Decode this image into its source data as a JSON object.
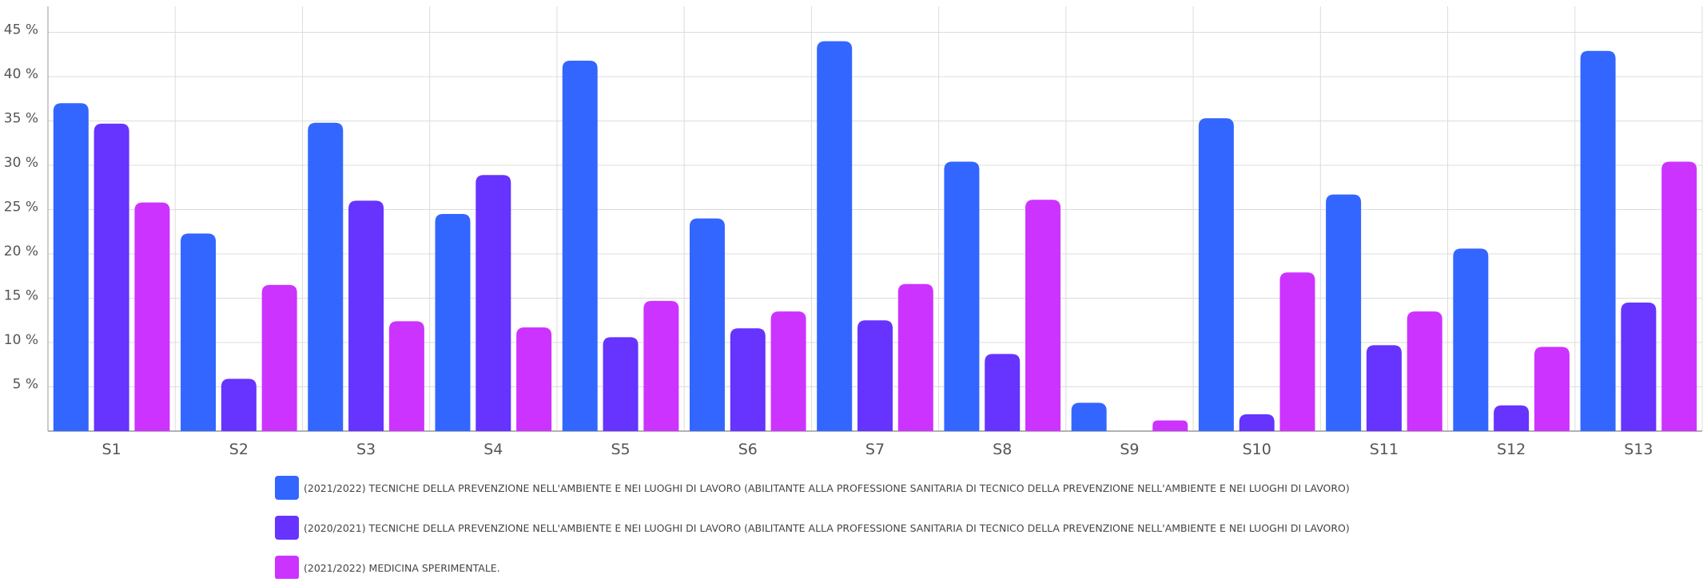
{
  "chart_data": {
    "type": "bar",
    "title": "",
    "xlabel": "",
    "ylabel": "",
    "categories": [
      "S1",
      "S2",
      "S3",
      "S4",
      "S5",
      "S6",
      "S7",
      "S8",
      "S9",
      "S10",
      "S11",
      "S12",
      "S13"
    ],
    "series": [
      {
        "name": "(2021/2022) TECNICHE DELLA PREVENZIONE NELL'AMBIENTE E NEI LUOGHI DI LAVORO (ABILITANTE ALLA PROFESSIONE SANITARIA DI TECNICO DELLA PREVENZIONE NELL'AMBIENTE E NEI LUOGHI DI LAVORO)",
        "color": "#3366ff",
        "values": [
          37.0,
          22.3,
          34.8,
          24.5,
          41.8,
          24.0,
          44.0,
          30.4,
          3.2,
          35.3,
          26.7,
          20.6,
          42.9
        ]
      },
      {
        "name": "(2020/2021) TECNICHE DELLA PREVENZIONE NELL'AMBIENTE E NEI LUOGHI DI LAVORO (ABILITANTE ALLA PROFESSIONE SANITARIA DI TECNICO DELLA PREVENZIONE NELL'AMBIENTE E NEI LUOGHI DI LAVORO)",
        "color": "#6633ff",
        "values": [
          34.7,
          5.9,
          26.0,
          28.9,
          10.6,
          11.6,
          12.5,
          8.7,
          0,
          1.9,
          9.7,
          2.9,
          14.5
        ]
      },
      {
        "name": "(2021/2022) MEDICINA SPERIMENTALE.",
        "color": "#cc33ff",
        "values": [
          25.8,
          16.5,
          12.4,
          11.7,
          14.7,
          13.5,
          16.6,
          26.1,
          1.2,
          17.9,
          13.5,
          9.5,
          30.4
        ]
      }
    ],
    "yticks": [
      5,
      10,
      15,
      20,
      25,
      30,
      35,
      40,
      45
    ],
    "ytick_suffix": " %",
    "ylim": [
      0,
      48.5
    ],
    "grid": true,
    "legend_position": "bottom"
  }
}
